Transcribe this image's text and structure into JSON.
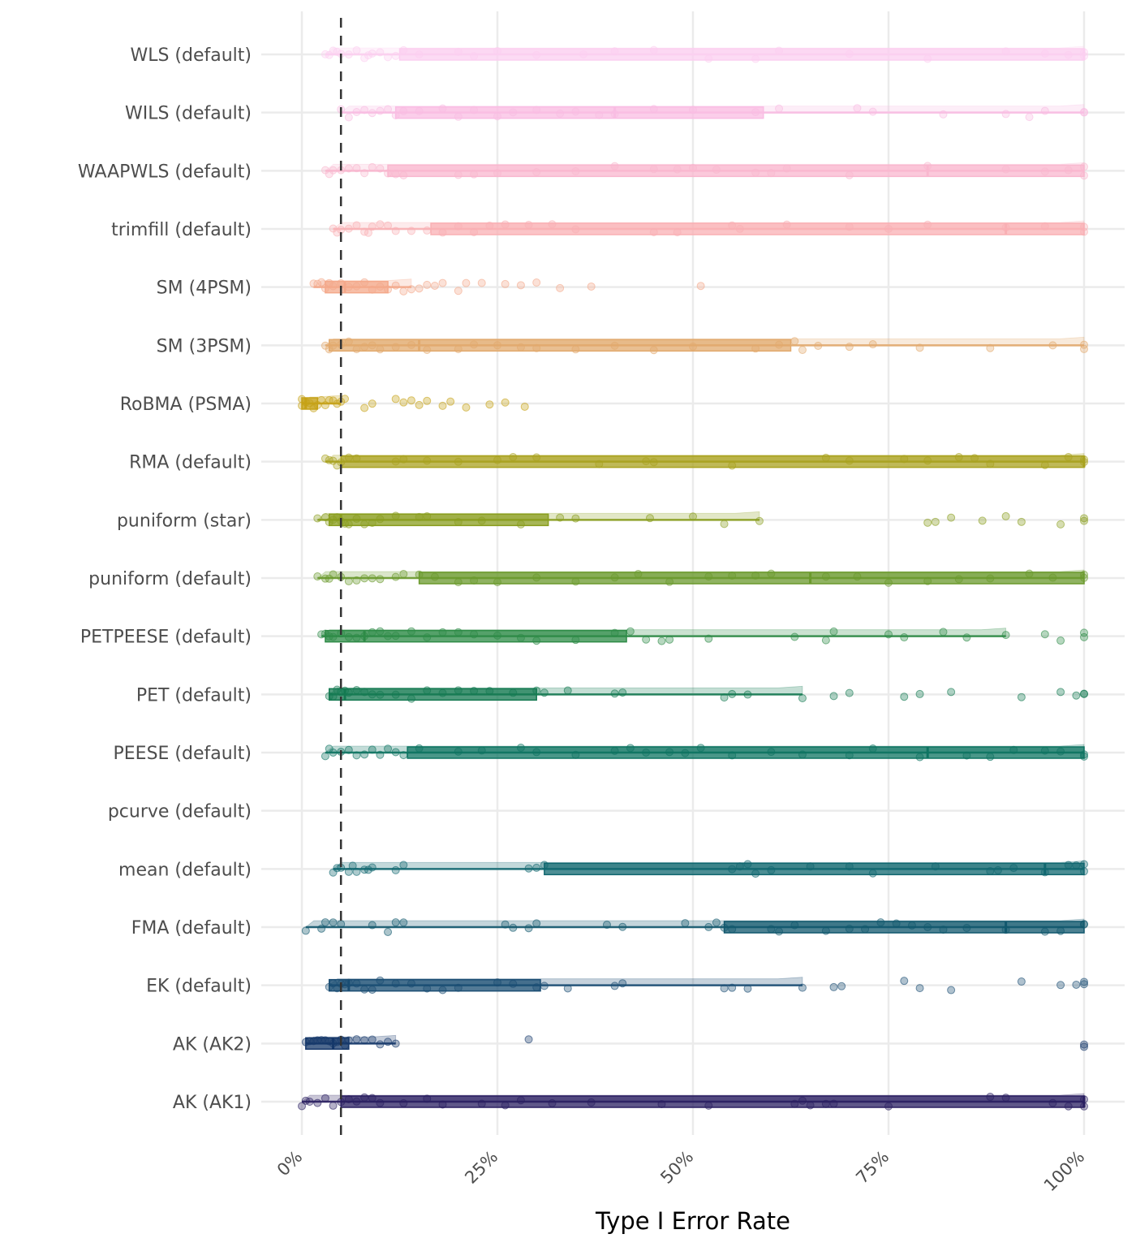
{
  "chart_data": {
    "type": "boxplot-jitter",
    "title": "",
    "xlabel": "Type I Error Rate",
    "ylabel": "",
    "xlim": [
      0,
      100
    ],
    "x_unit": "percent",
    "x_ticks": [
      "0%",
      "25%",
      "50%",
      "75%",
      "100%"
    ],
    "x_tick_values": [
      0,
      25,
      50,
      75,
      100
    ],
    "grid": true,
    "reference_line": {
      "x": 5,
      "style": "dashed",
      "color": "#333333"
    },
    "categories": [
      "WLS (default)",
      "WILS (default)",
      "WAAPWLS (default)",
      "trimfill (default)",
      "SM (4PSM)",
      "SM (3PSM)",
      "RoBMA (PSMA)",
      "RMA (default)",
      "puniform (star)",
      "puniform (default)",
      "PETPEESE (default)",
      "PET (default)",
      "PEESE (default)",
      "pcurve (default)",
      "mean (default)",
      "FMA (default)",
      "EK (default)",
      "AK (AK2)",
      "AK (AK1)"
    ],
    "series": [
      {
        "name": "WLS (default)",
        "color": "#FBCFF0",
        "min": 3,
        "q1": 12.5,
        "median": 100,
        "q3": 100,
        "max": 100,
        "points": [
          3,
          3.5,
          4,
          4.5,
          5,
          6,
          7,
          8,
          8.5,
          9,
          10,
          11,
          12,
          13,
          15,
          20,
          22,
          25,
          30,
          36,
          40,
          45,
          52,
          58,
          61,
          70,
          80,
          90,
          95,
          98,
          100,
          100
        ]
      },
      {
        "name": "WILS (default)",
        "color": "#F9BDE3",
        "min": 5,
        "q1": 12,
        "median": 40,
        "q3": 59,
        "max": 100,
        "points": [
          5,
          6,
          7,
          8,
          9,
          10,
          11,
          12,
          13,
          15,
          18,
          20,
          22,
          25,
          27,
          30,
          33,
          35,
          38,
          40,
          45,
          50,
          58,
          61,
          71,
          73,
          82,
          90,
          93,
          95,
          100,
          100
        ]
      },
      {
        "name": "WAAPWLS (default)",
        "color": "#F9B7CF",
        "min": 3,
        "q1": 11,
        "median": 80,
        "q3": 100,
        "max": 100,
        "points": [
          3,
          3.5,
          4,
          5,
          6,
          7,
          8,
          9,
          10,
          11,
          12,
          13,
          20,
          22,
          25,
          30,
          35,
          40,
          45,
          48,
          50,
          53,
          58,
          60,
          62,
          70,
          80,
          90,
          95,
          98,
          100,
          100
        ]
      },
      {
        "name": "trimfill (default)",
        "color": "#F9B0B4",
        "min": 4,
        "q1": 16.5,
        "median": 90,
        "q3": 100,
        "max": 100,
        "points": [
          4,
          4.5,
          5,
          6,
          7,
          8,
          8.5,
          9,
          10,
          11,
          12,
          14,
          16,
          18,
          20,
          22,
          24,
          26,
          29,
          32,
          35,
          45,
          48,
          55,
          56,
          62,
          70,
          75,
          80,
          90,
          95,
          100,
          100
        ]
      },
      {
        "name": "SM (4PSM)",
        "color": "#F4A98B",
        "min": 1.5,
        "q1": 3,
        "median": 5.5,
        "q3": 11,
        "max": 14,
        "points": [
          1.5,
          2,
          2.5,
          3,
          3.5,
          4,
          5,
          6,
          7,
          8,
          9,
          10,
          11,
          12,
          13,
          14,
          15,
          16,
          17,
          18,
          20,
          21,
          23,
          26,
          28,
          30,
          33,
          37,
          51
        ]
      },
      {
        "name": "SM (3PSM)",
        "color": "#E2AA6E",
        "min": 3,
        "q1": 3.5,
        "median": 15,
        "q3": 62.5,
        "max": 100,
        "points": [
          3,
          3.5,
          4,
          5,
          6,
          7,
          8,
          9,
          10,
          12,
          14,
          16,
          20,
          22,
          25,
          28,
          30,
          35,
          40,
          45,
          50,
          58,
          61,
          63,
          64,
          66,
          70,
          73,
          79,
          88,
          96,
          100,
          100
        ]
      },
      {
        "name": "RoBMA (PSMA)",
        "color": "#C6A218",
        "min": 0,
        "q1": 0,
        "median": 0.5,
        "q3": 2,
        "max": 5,
        "points": [
          0,
          0,
          0.5,
          1,
          1.5,
          2,
          2.5,
          3,
          3.5,
          4,
          4.5,
          5,
          5.5,
          8,
          9,
          12,
          13,
          14,
          15,
          16,
          18,
          19,
          21,
          24,
          26,
          28.5
        ]
      },
      {
        "name": "RMA (default)",
        "color": "#A9A21F",
        "min": 3,
        "q1": 5,
        "median": 100,
        "q3": 100,
        "max": 100,
        "points": [
          3,
          3.5,
          4,
          4.5,
          5,
          6,
          7,
          12,
          13,
          16,
          20,
          25,
          27,
          30,
          38,
          44,
          45,
          55,
          67,
          70,
          77,
          80,
          84,
          86,
          88,
          95,
          98,
          100,
          100
        ]
      },
      {
        "name": "puniform (star)",
        "color": "#8A9E1F",
        "min": 2,
        "q1": 3.5,
        "median": 5,
        "q3": 31.5,
        "max": 58.5,
        "points": [
          2,
          3,
          3.5,
          4,
          4.5,
          5,
          5.5,
          6,
          7,
          8,
          9,
          10,
          12,
          15,
          16,
          20,
          23,
          28,
          33,
          35,
          44.5,
          50,
          54,
          58.5,
          80,
          81,
          83,
          87,
          90,
          92,
          97,
          100,
          100
        ]
      },
      {
        "name": "puniform (default)",
        "color": "#6B9A2D",
        "min": 2,
        "q1": 15,
        "median": 65,
        "q3": 100,
        "max": 100,
        "points": [
          2,
          3,
          3.5,
          4,
          5,
          6,
          7,
          8,
          9,
          10,
          12,
          13,
          15,
          17,
          20,
          22,
          25,
          30,
          35,
          40,
          43,
          47,
          52,
          55,
          58,
          60,
          67,
          71,
          75,
          80,
          84,
          88,
          93,
          96,
          100,
          100
        ]
      },
      {
        "name": "PETPEESE (default)",
        "color": "#2E8B47",
        "min": 2.5,
        "q1": 3,
        "median": 8,
        "q3": 41.5,
        "max": 90,
        "points": [
          2.5,
          3,
          3.5,
          4,
          5,
          6,
          7,
          8,
          9,
          10,
          11,
          12,
          14,
          16,
          18,
          20,
          22,
          25,
          28,
          30,
          35,
          40,
          42,
          44,
          46,
          47,
          52,
          63,
          67,
          68,
          75,
          77,
          82,
          85,
          90,
          95,
          97,
          100,
          100
        ]
      },
      {
        "name": "PET (default)",
        "color": "#157A52",
        "min": 3.5,
        "q1": 3.5,
        "median": 5.5,
        "q3": 30,
        "max": 64,
        "points": [
          3.5,
          4,
          4.5,
          5,
          5.5,
          6,
          7,
          8,
          9,
          10,
          12,
          14,
          16,
          18,
          20,
          22,
          24,
          27,
          30,
          31,
          34,
          40,
          41,
          54,
          55,
          57,
          64,
          68,
          70,
          77,
          79,
          83,
          92,
          97,
          99,
          100,
          100
        ]
      },
      {
        "name": "PEESE (default)",
        "color": "#0E7462",
        "min": 3,
        "q1": 13.5,
        "median": 80,
        "q3": 100,
        "max": 100,
        "points": [
          3,
          3.5,
          4,
          5,
          6,
          7,
          8,
          9,
          10,
          11,
          12,
          13,
          15,
          20,
          23,
          28,
          30,
          35,
          40,
          42,
          44,
          47,
          49,
          51,
          55,
          60,
          64,
          70,
          73,
          79,
          85,
          88,
          91,
          95,
          97,
          100,
          100
        ]
      },
      {
        "name": "pcurve (default)",
        "color": "#0B6B6B",
        "points": []
      },
      {
        "name": "mean (default)",
        "color": "#116870",
        "min": 4,
        "q1": 31,
        "median": 95,
        "q3": 100,
        "max": 100,
        "points": [
          4,
          4.5,
          5,
          6,
          6.5,
          7,
          8,
          8.5,
          9,
          12,
          13,
          29,
          30,
          31,
          55,
          56,
          57,
          58,
          60,
          65,
          70,
          73,
          81,
          88,
          89,
          91,
          95,
          98,
          99,
          100,
          100
        ]
      },
      {
        "name": "FMA (default)",
        "color": "#12586E",
        "min": 0.5,
        "q1": 54,
        "median": 90,
        "q3": 100,
        "max": 100,
        "points": [
          0.5,
          2.5,
          3,
          4,
          5,
          9,
          11,
          12,
          13,
          26,
          27,
          29,
          30,
          39,
          41,
          49,
          52,
          53,
          54,
          55,
          60,
          61,
          63,
          67,
          70,
          72,
          74,
          76,
          78,
          80,
          82,
          85,
          90,
          95,
          97,
          100,
          100
        ]
      },
      {
        "name": "EK (default)",
        "color": "#1A4D73",
        "min": 3.5,
        "q1": 3.5,
        "median": 6,
        "q3": 30.5,
        "max": 64,
        "points": [
          3.5,
          4,
          4.5,
          5,
          5.5,
          6,
          7,
          8,
          9,
          10,
          12,
          14,
          16,
          18,
          20,
          25,
          27,
          30,
          31,
          34,
          40,
          41,
          54,
          55,
          57,
          64,
          68,
          69,
          77,
          79,
          83,
          92,
          97,
          99,
          100,
          100
        ]
      },
      {
        "name": "AK (AK2)",
        "color": "#16386A",
        "min": 0.5,
        "q1": 0.5,
        "median": 4,
        "q3": 6,
        "max": 12,
        "points": [
          0.5,
          1,
          1.5,
          2,
          2.5,
          3,
          3.5,
          4,
          4.5,
          5,
          5.5,
          6,
          7,
          8,
          9,
          10,
          11,
          12,
          29,
          100,
          100
        ]
      },
      {
        "name": "AK (AK1)",
        "color": "#2A1F61",
        "min": 0,
        "q1": 5,
        "median": 100,
        "q3": 100,
        "max": 100,
        "points": [
          0,
          0.5,
          1,
          2,
          3,
          4,
          5,
          6,
          7,
          8,
          9,
          10,
          13,
          16,
          18,
          23,
          26,
          28,
          32,
          37,
          46,
          52,
          63,
          64,
          65,
          67,
          68,
          75,
          88,
          90,
          96,
          98,
          100,
          100
        ]
      }
    ]
  }
}
